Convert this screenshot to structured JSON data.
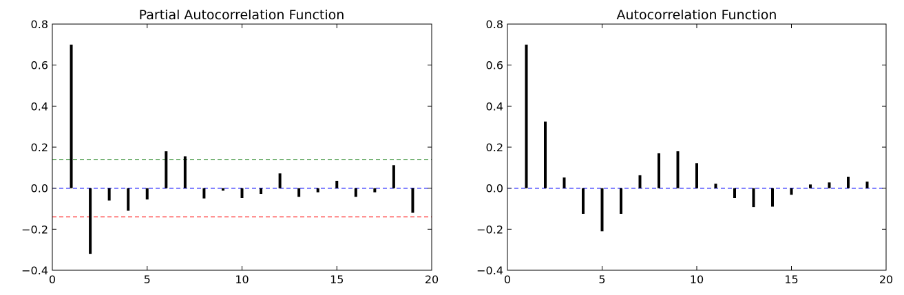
{
  "chart_data": [
    {
      "type": "bar",
      "title": "Partial Autocorrelation Function",
      "xlabel": "",
      "ylabel": "",
      "xlim": [
        0,
        20
      ],
      "ylim": [
        -0.4,
        0.8
      ],
      "x_ticks": [
        0,
        5,
        10,
        15,
        20
      ],
      "y_ticks": [
        -0.4,
        -0.2,
        0.0,
        0.2,
        0.4,
        0.6,
        0.8
      ],
      "y_tick_labels": [
        "−0.4",
        "−0.2",
        "0.0",
        "0.2",
        "0.4",
        "0.6",
        "0.8"
      ],
      "grid": false,
      "legend": "none",
      "lags": [
        1,
        2,
        3,
        4,
        5,
        6,
        7,
        8,
        9,
        10,
        11,
        12,
        13,
        14,
        15,
        16,
        17,
        18,
        19
      ],
      "values": [
        0.7,
        -0.32,
        -0.06,
        -0.11,
        -0.055,
        0.18,
        0.155,
        -0.05,
        -0.012,
        -0.048,
        -0.028,
        0.072,
        -0.042,
        -0.02,
        0.036,
        -0.042,
        -0.02,
        0.112,
        -0.12
      ],
      "reference_lines": [
        {
          "y": 0.14,
          "color": "#2e8b2e",
          "style": "dashed"
        },
        {
          "y": 0.0,
          "color": "#0000ff",
          "style": "dashed"
        },
        {
          "y": -0.14,
          "color": "#ff0000",
          "style": "dashed"
        }
      ]
    },
    {
      "type": "bar",
      "title": "Autocorrelation Function",
      "xlabel": "",
      "ylabel": "",
      "xlim": [
        0,
        20
      ],
      "ylim": [
        -0.4,
        0.8
      ],
      "x_ticks": [
        0,
        5,
        10,
        15,
        20
      ],
      "y_ticks": [
        -0.4,
        -0.2,
        0.0,
        0.2,
        0.4,
        0.6,
        0.8
      ],
      "y_tick_labels": [
        "−0.4",
        "−0.2",
        "0.0",
        "0.2",
        "0.4",
        "0.6",
        "0.8"
      ],
      "grid": false,
      "legend": "none",
      "lags": [
        1,
        2,
        3,
        4,
        5,
        6,
        7,
        8,
        9,
        10,
        11,
        12,
        13,
        14,
        15,
        16,
        17,
        18,
        19
      ],
      "values": [
        0.7,
        0.325,
        0.052,
        -0.125,
        -0.21,
        -0.125,
        0.063,
        0.17,
        0.18,
        0.122,
        0.022,
        -0.048,
        -0.092,
        -0.09,
        -0.032,
        0.018,
        0.028,
        0.056,
        0.032
      ],
      "reference_lines": [
        {
          "y": 0.0,
          "color": "#0000ff",
          "style": "dashed"
        }
      ]
    }
  ]
}
